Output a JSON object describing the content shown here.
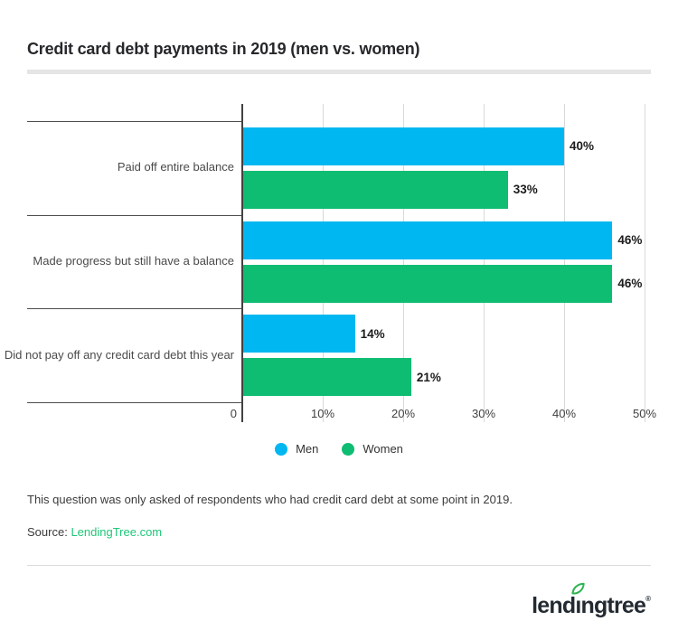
{
  "header": {
    "title": "Credit card debt payments in 2019 (men vs. women)"
  },
  "chart_data": {
    "type": "bar",
    "orientation": "horizontal",
    "title": "Credit card debt payments in 2019 (men vs. women)",
    "categories": [
      "Paid off entire balance",
      "Made progress but still have a balance",
      "Did not pay off any credit card debt this year"
    ],
    "series": [
      {
        "name": "Men",
        "color": "#00b7f1",
        "values": [
          40,
          46,
          14
        ],
        "labels": [
          "40%",
          "46%",
          "14%"
        ]
      },
      {
        "name": "Women",
        "color": "#0fbd72",
        "values": [
          33,
          46,
          21
        ],
        "labels": [
          "33%",
          "46%",
          "21%"
        ]
      }
    ],
    "xlabel": "",
    "ylabel": "",
    "x_axis": {
      "min": 0,
      "max": 50,
      "ticks": [
        "0",
        "10%",
        "20%",
        "30%",
        "40%",
        "50%"
      ],
      "tick_values": [
        0,
        10,
        20,
        30,
        40,
        50
      ]
    },
    "grid": true,
    "legend_position": "bottom"
  },
  "legend": {
    "items": [
      {
        "label": "Men",
        "color": "#00b7f1"
      },
      {
        "label": "Women",
        "color": "#0fbd72"
      }
    ]
  },
  "notes": {
    "footnote": "This question was only asked of respondents who had credit card debt at some point in 2019.",
    "source_label": "Source:",
    "source_link": "LendingTree.com"
  },
  "branding": {
    "logo_pre": "lend",
    "logo_i": "ı",
    "logo_post": "ngtree",
    "registered_mark": "®",
    "logo_full_text": "lendingtree",
    "leaf_color": "#2eb452",
    "logo_color": "#232a31"
  },
  "colors": {
    "men_blue": "#00b7f1",
    "women_green": "#0fbd72",
    "source_link_green": "#1ec778",
    "gridline": "#d9d9d9",
    "axis": "#424242"
  }
}
